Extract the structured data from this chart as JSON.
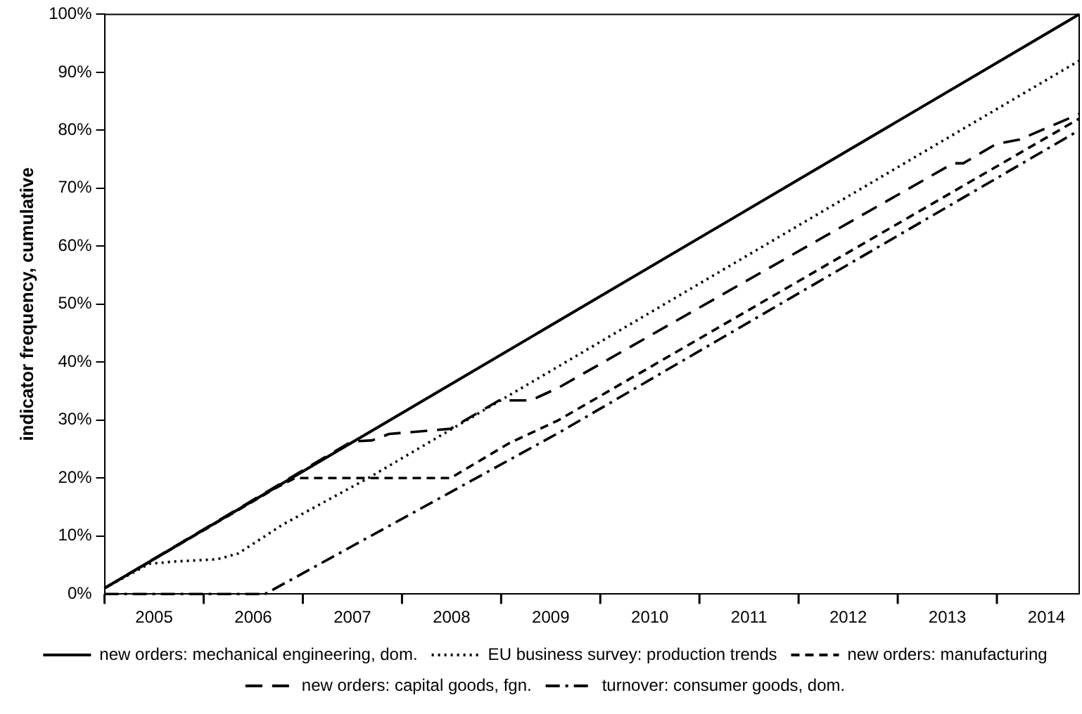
{
  "chart_data": {
    "type": "line",
    "ylabel": "indicator frequency, cumulative",
    "xlim": [
      2005,
      2014.83
    ],
    "xticks": [
      {
        "value": 2005,
        "label": null
      },
      {
        "value": 2005.5,
        "label": "2005"
      },
      {
        "value": 2006,
        "label": null
      },
      {
        "value": 2006.5,
        "label": "2006"
      },
      {
        "value": 2007,
        "label": null
      },
      {
        "value": 2007.5,
        "label": "2007"
      },
      {
        "value": 2008,
        "label": null
      },
      {
        "value": 2008.5,
        "label": "2008"
      },
      {
        "value": 2009,
        "label": null
      },
      {
        "value": 2009.5,
        "label": "2009"
      },
      {
        "value": 2010,
        "label": null
      },
      {
        "value": 2010.5,
        "label": "2010"
      },
      {
        "value": 2011,
        "label": null
      },
      {
        "value": 2011.5,
        "label": "2011"
      },
      {
        "value": 2012,
        "label": null
      },
      {
        "value": 2012.5,
        "label": "2012"
      },
      {
        "value": 2013,
        "label": null
      },
      {
        "value": 2013.5,
        "label": "2013"
      },
      {
        "value": 2014,
        "label": null
      },
      {
        "value": 2014.5,
        "label": "2014"
      }
    ],
    "ylim": [
      0,
      100
    ],
    "yticks": [
      {
        "value": 0,
        "label": "0%"
      },
      {
        "value": 10,
        "label": "10%"
      },
      {
        "value": 20,
        "label": "20%"
      },
      {
        "value": 30,
        "label": "30%"
      },
      {
        "value": 40,
        "label": "40%"
      },
      {
        "value": 50,
        "label": "50%"
      },
      {
        "value": 60,
        "label": "60%"
      },
      {
        "value": 70,
        "label": "70%"
      },
      {
        "value": 80,
        "label": "80%"
      },
      {
        "value": 90,
        "label": "90%"
      },
      {
        "value": 100,
        "label": "100%"
      }
    ],
    "grid": false,
    "legend": "bottom",
    "marker": "none",
    "series": [
      {
        "name": "new orders: mechanical engineering, dom.",
        "color": "#000000",
        "line_style": "solid",
        "x": [
          2005,
          2014.83
        ],
        "values": [
          1,
          100
        ]
      },
      {
        "name": "EU business survey: production trends",
        "color": "#000000",
        "line_style": "dotted",
        "x": [
          2005,
          2005.45,
          2005.71,
          2006.14,
          2006.35,
          2006.8,
          2007.66,
          2014.83
        ],
        "values": [
          1,
          5.2,
          5.6,
          6,
          7,
          12,
          20,
          92
        ]
      },
      {
        "name": "new orders: manufacturing",
        "color": "#000000",
        "line_style": "dashed",
        "x": [
          2005,
          2006.74,
          2006.92,
          2008.49,
          2009.08,
          2009.58,
          2014.83
        ],
        "values": [
          1,
          18.4,
          20,
          20,
          26,
          30,
          82
        ]
      },
      {
        "name": "new orders: capital goods, fgn.",
        "color": "#000000",
        "line_style": "longdash",
        "x": [
          2005,
          2007.49,
          2007.7,
          2007.87,
          2008.49,
          2008.98,
          2009.3,
          2009.58,
          2013.56,
          2013.66,
          2013.99,
          2014.23,
          2014.83
        ],
        "values": [
          1,
          26.3,
          26.5,
          27.6,
          28.5,
          33.4,
          33.4,
          35.6,
          74.3,
          74.3,
          77.6,
          78.4,
          82.8
        ]
      },
      {
        "name": "turnover: consumer goods, dom.",
        "color": "#000000",
        "line_style": "dashdot",
        "x": [
          2005,
          2006.62,
          2009.58,
          2014.83
        ],
        "values": [
          0,
          0,
          27.8,
          80
        ]
      }
    ]
  }
}
